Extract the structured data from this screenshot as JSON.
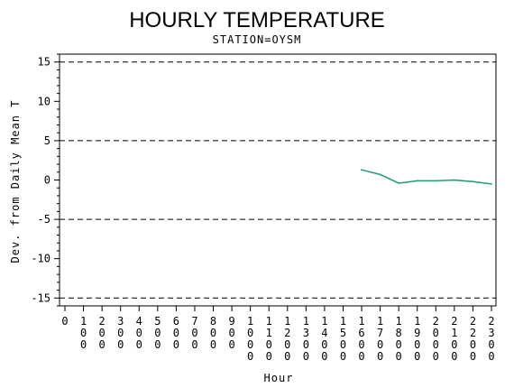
{
  "chart_data": {
    "type": "line",
    "title": "HOURLY TEMPERATURE",
    "subtitle": "STATION=OYSM",
    "xlabel": "Hour",
    "ylabel": "Dev. from Daily Mean T",
    "xlim": [
      0,
      2300
    ],
    "ylim": [
      -16,
      16
    ],
    "x_ticks": [
      "0",
      "100",
      "200",
      "300",
      "400",
      "500",
      "600",
      "700",
      "800",
      "900",
      "1000",
      "1100",
      "1200",
      "1300",
      "1400",
      "1500",
      "1600",
      "1700",
      "1800",
      "1900",
      "2000",
      "2100",
      "2200",
      "2300"
    ],
    "y_ticks": [
      15,
      10,
      5,
      0,
      -5,
      -10,
      -15
    ],
    "reference_lines": [
      15,
      5,
      -5,
      -15
    ],
    "series": [
      {
        "x": [
          1600,
          1700,
          1800,
          1900,
          2000,
          2100,
          2200,
          2300
        ],
        "values": [
          1.3,
          0.7,
          -0.4,
          -0.1,
          -0.1,
          0.0,
          -0.2,
          -0.5
        ]
      }
    ],
    "grid": false,
    "line_color": "#1f9a7a"
  }
}
